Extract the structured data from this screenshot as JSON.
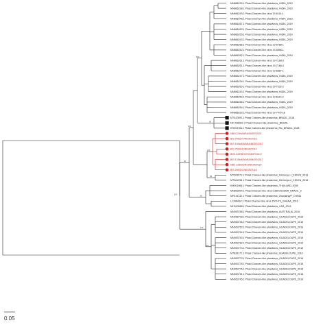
{
  "tree": {
    "scale_label": "0.05",
    "marker_colors": {
      "nigeria": "#d41d1d",
      "brazil": "#111111"
    },
    "leaves": [
      {
        "label": "MN866239.1 Phasi Charoen-like phasivirus_INDIA_2019"
      },
      {
        "label": "MN866238.1 Phasi Charoen-like phasivirus_INDIA_2019"
      },
      {
        "label": "MN866249.1 Phasi Charoen-like virus 19-6114-1"
      },
      {
        "label": "MN866248.1 Phasi Charoen-like phasivirus_INDIA_2019"
      },
      {
        "label": "MN866287.1 Phasi Charoen-like phasivirus_INDIA_2019"
      },
      {
        "label": "MN866263.1 Phasi Charoen-like phasivirus_INDIA_2019"
      },
      {
        "label": "MN866255.1 Phasi Charoen-like phasivirus_INDIA_2019"
      },
      {
        "label": "MN866243.1 Phasi Charoen-like phasivirus_INDIA_2019"
      },
      {
        "label": "MN866266.1 Phasi Charoen-like virus 19-6788-1"
      },
      {
        "label": "MN866252.1 Phasi Charoen-like virus 19-5896-1"
      },
      {
        "label": "MN866262.1 Phasi Charoen-like phasivirus_INDIA_2019"
      },
      {
        "label": "MN866261.1 Phasi Charoen-like virus 19-7168-3"
      },
      {
        "label": "MN866251.1 Phasi Charoen-like virus 19-7168-4"
      },
      {
        "label": "MN866244.1 Phasi Charoen-like virus 19-6887-1"
      },
      {
        "label": "MN866247.1 Phasi Charoen-like phasivirus_INDIA_2019"
      },
      {
        "label": "MN866234.1 Phasi Charoen-like phasivirus_INDIA_2019"
      },
      {
        "label": "MN866260.1 Phasi Charoen-like virus 19-7202-2"
      },
      {
        "label": "MN866240.1 Phasi Charoen-like phasivirus_INDIA_2019"
      },
      {
        "label": "MN866259.1 Phasi Charoen-like virus 19-6119-2"
      },
      {
        "label": "MN866256.1 Phasi Charoen-like phasivirus_INDIA_2019"
      },
      {
        "label": "MN866254.1 Phasi Charoen-like phasivirus_INDIA_2019"
      },
      {
        "label": "MN866253.1 Phasi Charoen-like virus 19-7475-18"
      },
      {
        "label": "MT347890.1 Phasi Charoen-like phasivirus_BRAZIL_2018",
        "marker": "brazil"
      },
      {
        "label": "NC 038289.1 Phasi Charoen-like phasivirus_BRAZIL",
        "marker": "brazil"
      },
      {
        "label": "KR003784.1 Phasi Charoen-like phasivirus_Rio_BRAZIL_2018",
        "marker": "brazil"
      },
      {
        "label": "NB2/12/KWARA/NIGR/2020",
        "marker": "nigeria",
        "red": true
      },
      {
        "label": "B/S 09/EDO/NIGR/2018",
        "marker": "nigeria",
        "red": true
      },
      {
        "label": "B/S 169a/KWARA/NIGR/2017",
        "marker": "nigeria",
        "red": true
      },
      {
        "label": "B/S 75/EDO/NIGR/2019",
        "marker": "nigeria",
        "red": true
      },
      {
        "label": "B/23 83/EBONYI/NIGR/2017",
        "marker": "nigeria",
        "red": true
      },
      {
        "label": "B/S 135b/KWARA/NIGR/2017",
        "marker": "nigeria",
        "red": true
      },
      {
        "label": "NB3 13/EBONYI/NIGR/2020",
        "marker": "nigeria",
        "red": true
      },
      {
        "label": "B/S 09/EDO/NIGR/2018",
        "marker": "nigeria",
        "red": true
      },
      {
        "label": "MT261071.1 Phasi Charoen-like phasivirus_18-Kenya-1_KENYA_2018"
      },
      {
        "label": "MT361998.1 Phasi Charoen-like phasivirus_18-Kenya-2_KENYA_2018"
      },
      {
        "label": "KM001086.1 Phasi Charoen-like phasivirus_THAILAND_2008"
      },
      {
        "label": "MN863004.1 Phasi Charoen-like virus C35F/2016/BR_BRAZIL_2"
      },
      {
        "label": "MF614132.1 Phasi Charoen-like phasivirus_Zhanjiang/P_CHINA"
      },
      {
        "label": "LC496492.1 Phasi Charoen-like virus 15CHT3_GHANA_2016"
      },
      {
        "label": "MH310068.1 Phasi Charoen-like phasivirus_USA_2015"
      },
      {
        "label": "MN053788.1 Phasi Charoen-like phasivirus_AUSTRALIA_2016"
      },
      {
        "label": "MN053798.1 Phasi Charoen-like phasivirus_GUADELOUPE_2016"
      },
      {
        "label": "MN053746.1 Phasi Charoen-like phasivirus_GUADELOUPE_2016"
      },
      {
        "label": "MN053762.1 Phasi Charoen-like phasivirus_GUADELOUPE_2016"
      },
      {
        "label": "MN053754.1 Phasi Charoen-like phasivirus_GUADELOUPE_2016"
      },
      {
        "label": "MN053750.1 Phasi Charoen-like phasivirus_GUADELOUPE_2016"
      },
      {
        "label": "MN053782.1 Phasi Charoen-like phasivirus_GUADELOUPE_2016"
      },
      {
        "label": "MN053770.1 Phasi Charoen-like phasivirus_GUADELOUPE_2016"
      },
      {
        "label": "MT828172.1 Phasi Charoen-like phasivirus_GUADELOUPE_2016"
      },
      {
        "label": "MN053773.1 Phasi Charoen-like phasivirus_GUADELOUPE_2016"
      },
      {
        "label": "MN053778.1 Phasi Charoen-like phasivirus_GUADELOUPE_2016"
      },
      {
        "label": "MN053776.1 Phasi Charoen-like phasivirus_GUADELOUPE_2016"
      },
      {
        "label": "MN053751.1 Phasi Charoen-like phasivirus_GUADELOUPE_2016"
      },
      {
        "label": "MN053745.1 Phasi Charoen-like phasivirus_GUADELOUPE_2016"
      }
    ],
    "support_values": [
      "100",
      "99",
      "100",
      "98",
      "100",
      "65",
      "100",
      "100",
      "99",
      "100"
    ]
  }
}
